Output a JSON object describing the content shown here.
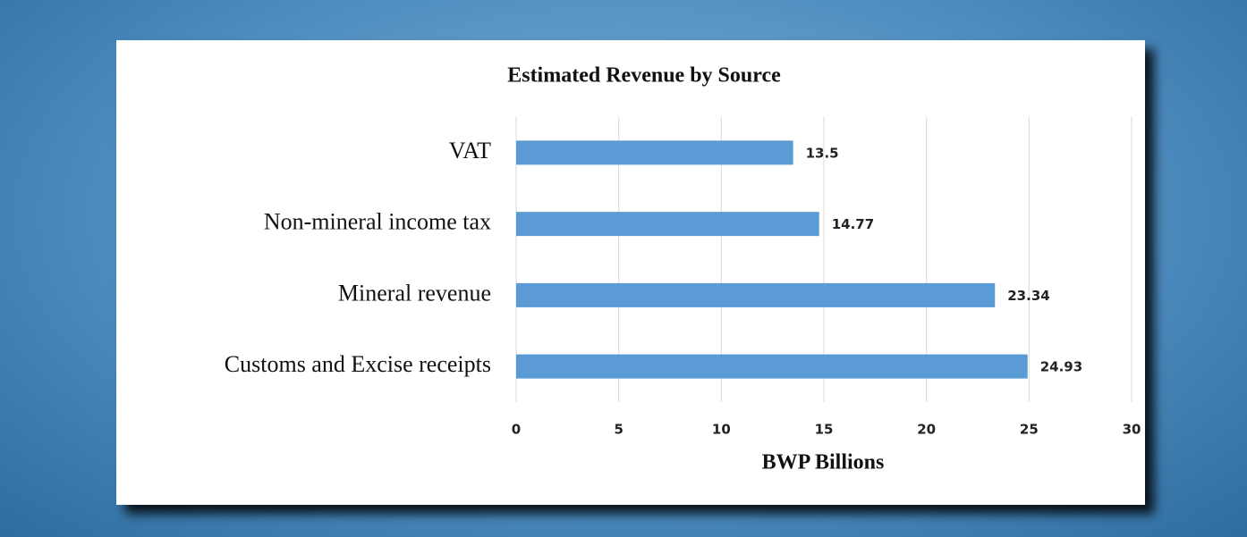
{
  "chart_data": {
    "type": "bar",
    "orientation": "horizontal",
    "title": "Estimated Revenue by Source",
    "xlabel": "BWP Billions",
    "categories": [
      "VAT",
      "Non-mineral income tax",
      "Mineral revenue",
      "Customs and Excise receipts"
    ],
    "values": [
      13.5,
      14.77,
      23.34,
      24.93
    ],
    "color": "#5b9bd5",
    "xlim": [
      0,
      30
    ],
    "xticks": [
      0,
      5,
      10,
      15,
      20,
      25,
      30
    ],
    "grid": true
  }
}
